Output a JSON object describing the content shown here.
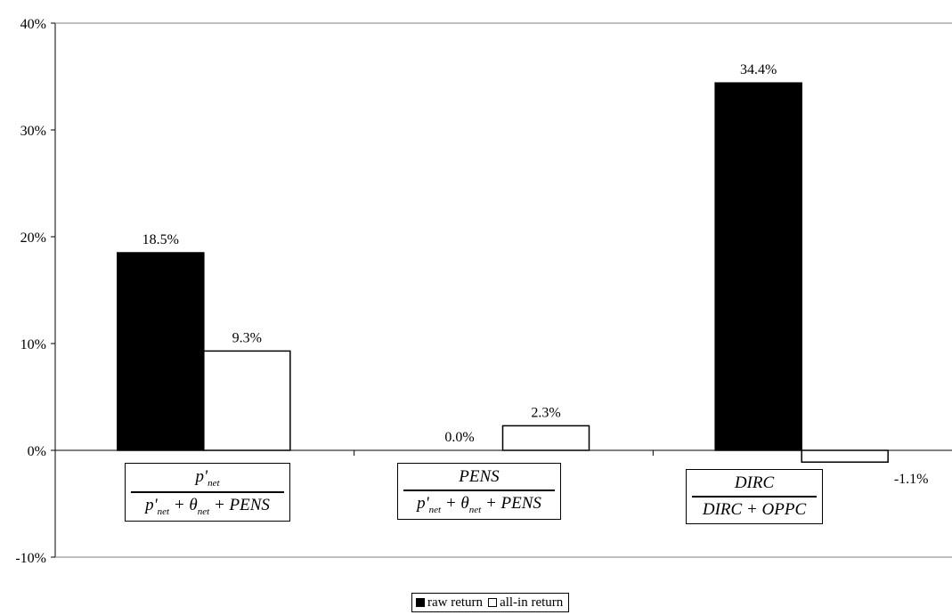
{
  "chart_data": {
    "type": "bar",
    "title": "",
    "xlabel": "",
    "ylabel": "",
    "ylim": [
      -10,
      40
    ],
    "yticks": [
      -10,
      0,
      10,
      20,
      30,
      40
    ],
    "ytick_labels": [
      "-10%",
      "0%",
      "10%",
      "20%",
      "30%",
      "40%"
    ],
    "categories": [
      {
        "numerator": "p'net",
        "denominator": "p'net + θnet + PENS"
      },
      {
        "numerator": "PENS",
        "denominator": "p'net + θnet + PENS"
      },
      {
        "numerator": "DIRC",
        "denominator": "DIRC + OPPC"
      }
    ],
    "series": [
      {
        "name": "raw return",
        "color": "#000000",
        "values": [
          18.5,
          0.0,
          34.4
        ],
        "labels": [
          "18.5%",
          "0.0%",
          "34.4%"
        ]
      },
      {
        "name": "all-in return",
        "color": "#ffffff",
        "values": [
          9.3,
          2.3,
          -1.1
        ],
        "labels": [
          "9.3%",
          "2.3%",
          "-1.1%"
        ]
      }
    ],
    "grid": false,
    "legend_position": "bottom"
  }
}
